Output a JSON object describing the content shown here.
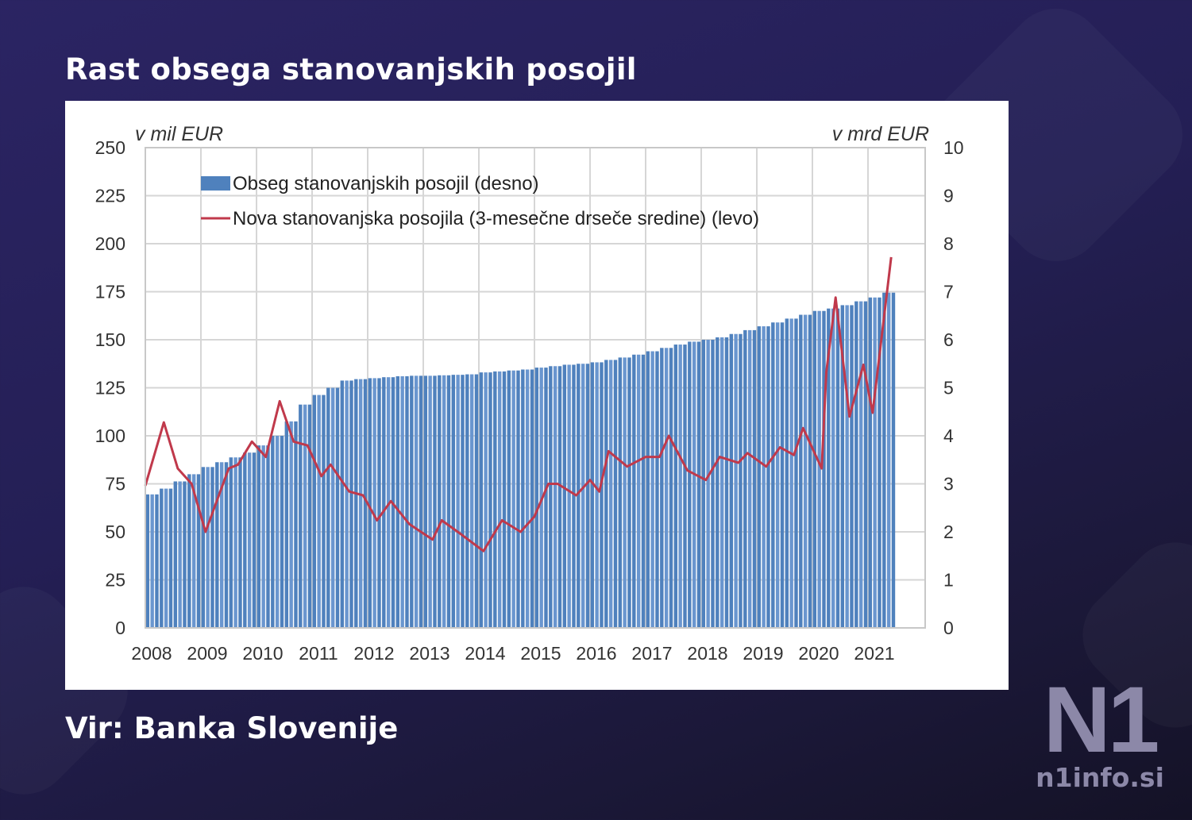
{
  "title": "Rast obsega stanovanjskih posojil",
  "source": "Vir: Banka Slovenije",
  "logo": {
    "mark": "N1",
    "site": "n1info.si"
  },
  "chart_data": {
    "type": "bar+line",
    "left_axis": {
      "label": "v mil EUR",
      "range": [
        0,
        250
      ],
      "ticks": [
        "0",
        "25",
        "50",
        "75",
        "100",
        "125",
        "150",
        "175",
        "200",
        "225",
        "250"
      ]
    },
    "right_axis": {
      "label": "v mrd EUR",
      "range": [
        0,
        10
      ],
      "ticks": [
        "0",
        "1",
        "2",
        "3",
        "4",
        "5",
        "6",
        "7",
        "8",
        "9",
        "10"
      ]
    },
    "x_ticks": [
      "2008",
      "2009",
      "2010",
      "2011",
      "2012",
      "2013",
      "2014",
      "2015",
      "2016",
      "2017",
      "2018",
      "2019",
      "2020",
      "2021"
    ],
    "grid": true,
    "legend_position": "top-left",
    "bar_series": {
      "name": "Obseg stanovanjskih posojil (desno)",
      "axis": "right",
      "color": "#4f81bd",
      "x": [
        "2008-Q1",
        "2008-Q2",
        "2008-Q3",
        "2008-Q4",
        "2009-Q1",
        "2009-Q2",
        "2009-Q3",
        "2009-Q4",
        "2010-Q1",
        "2010-Q2",
        "2010-Q3",
        "2010-Q4",
        "2011-Q1",
        "2011-Q2",
        "2011-Q3",
        "2011-Q4",
        "2012-Q1",
        "2012-Q2",
        "2012-Q3",
        "2012-Q4",
        "2013-Q1",
        "2013-Q2",
        "2013-Q3",
        "2013-Q4",
        "2014-Q1",
        "2014-Q2",
        "2014-Q3",
        "2014-Q4",
        "2015-Q1",
        "2015-Q2",
        "2015-Q3",
        "2015-Q4",
        "2016-Q1",
        "2016-Q2",
        "2016-Q3",
        "2016-Q4",
        "2017-Q1",
        "2017-Q2",
        "2017-Q3",
        "2017-Q4",
        "2018-Q1",
        "2018-Q2",
        "2018-Q3",
        "2018-Q4",
        "2019-Q1",
        "2019-Q2",
        "2019-Q3",
        "2019-Q4",
        "2020-Q1",
        "2020-Q2",
        "2020-Q3",
        "2020-Q4",
        "2021-Q1",
        "2021-Q2"
      ],
      "values": [
        2.78,
        2.9,
        3.05,
        3.2,
        3.35,
        3.45,
        3.55,
        3.65,
        3.8,
        4.0,
        4.3,
        4.65,
        4.85,
        5.0,
        5.15,
        5.18,
        5.2,
        5.22,
        5.24,
        5.25,
        5.25,
        5.26,
        5.27,
        5.28,
        5.32,
        5.34,
        5.36,
        5.38,
        5.42,
        5.45,
        5.48,
        5.5,
        5.53,
        5.58,
        5.63,
        5.69,
        5.76,
        5.83,
        5.9,
        5.96,
        6.0,
        6.05,
        6.12,
        6.2,
        6.28,
        6.36,
        6.44,
        6.52,
        6.6,
        6.65,
        6.72,
        6.8,
        6.88,
        6.98
      ]
    },
    "line_series": {
      "name": "Nova stanovanjska posojila  (3-mesečne drseče sredine) (levo)",
      "axis": "left",
      "color": "#c0394b",
      "x": [
        "2008-01",
        "2008-05",
        "2008-08",
        "2008-11",
        "2009-02",
        "2009-07",
        "2009-09",
        "2009-12",
        "2010-03",
        "2010-06",
        "2010-09",
        "2010-12",
        "2011-03",
        "2011-05",
        "2011-09",
        "2011-12",
        "2012-03",
        "2012-06",
        "2012-10",
        "2013-03",
        "2013-05",
        "2013-09",
        "2014-02",
        "2014-06",
        "2014-10",
        "2015-01",
        "2015-04",
        "2015-06",
        "2015-10",
        "2016-01",
        "2016-03",
        "2016-05",
        "2016-09",
        "2017-01",
        "2017-04",
        "2017-06",
        "2017-10",
        "2018-02",
        "2018-05",
        "2018-09",
        "2018-11",
        "2019-03",
        "2019-06",
        "2019-09",
        "2019-11",
        "2020-03",
        "2020-04",
        "2020-06",
        "2020-09",
        "2020-12",
        "2021-02",
        "2021-06"
      ],
      "values": [
        74,
        107,
        83,
        75,
        50,
        83,
        85,
        97,
        89,
        118,
        97,
        95,
        79,
        85,
        71,
        69,
        56,
        66,
        54,
        46,
        56,
        49,
        40,
        56,
        50,
        58,
        75,
        75,
        69,
        77,
        71,
        92,
        84,
        89,
        89,
        100,
        82,
        77,
        89,
        86,
        91,
        84,
        94,
        90,
        104,
        83,
        133,
        172,
        110,
        137,
        112,
        193
      ]
    }
  }
}
